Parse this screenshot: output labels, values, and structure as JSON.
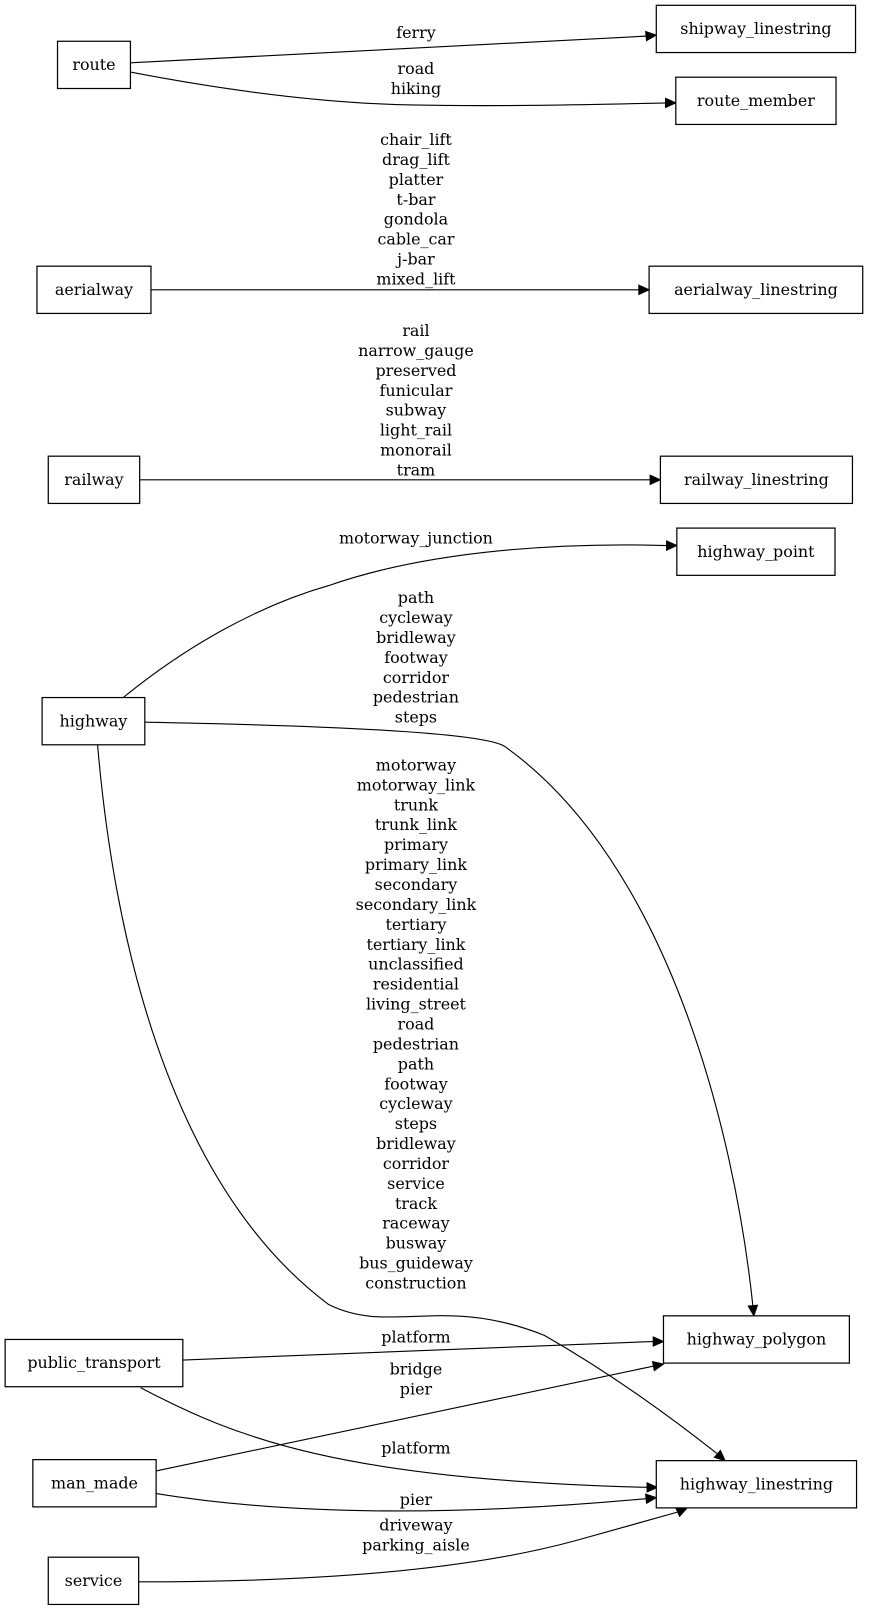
{
  "nodes": [
    {
      "id": "route",
      "label": "route"
    },
    {
      "id": "shipway_linestring",
      "label": "shipway_linestring"
    },
    {
      "id": "route_member",
      "label": "route_member"
    },
    {
      "id": "aerialway",
      "label": "aerialway"
    },
    {
      "id": "aerialway_linestring",
      "label": "aerialway_linestring"
    },
    {
      "id": "railway",
      "label": "railway"
    },
    {
      "id": "railway_linestring",
      "label": "railway_linestring"
    },
    {
      "id": "highway_point",
      "label": "highway_point"
    },
    {
      "id": "highway",
      "label": "highway"
    },
    {
      "id": "highway_polygon",
      "label": "highway_polygon"
    },
    {
      "id": "highway_linestring",
      "label": "highway_linestring"
    },
    {
      "id": "public_transport",
      "label": "public_transport"
    },
    {
      "id": "man_made",
      "label": "man_made"
    },
    {
      "id": "service",
      "label": "service"
    }
  ],
  "edges": [
    {
      "from": "route",
      "to": "shipway_linestring",
      "labels": [
        "ferry"
      ]
    },
    {
      "from": "route",
      "to": "route_member",
      "labels": [
        "road",
        "hiking"
      ]
    },
    {
      "from": "aerialway",
      "to": "aerialway_linestring",
      "labels": [
        "chair_lift",
        "drag_lift",
        "platter",
        "t-bar",
        "gondola",
        "cable_car",
        "j-bar",
        "mixed_lift"
      ]
    },
    {
      "from": "railway",
      "to": "railway_linestring",
      "labels": [
        "rail",
        "narrow_gauge",
        "preserved",
        "funicular",
        "subway",
        "light_rail",
        "monorail",
        "tram"
      ]
    },
    {
      "from": "highway",
      "to": "highway_point",
      "labels": [
        "motorway_junction"
      ]
    },
    {
      "from": "highway",
      "to": "highway_polygon",
      "labels": [
        "path",
        "cycleway",
        "bridleway",
        "footway",
        "corridor",
        "pedestrian",
        "steps"
      ]
    },
    {
      "from": "highway",
      "to": "highway_linestring",
      "labels": [
        "motorway",
        "motorway_link",
        "trunk",
        "trunk_link",
        "primary",
        "primary_link",
        "secondary",
        "secondary_link",
        "tertiary",
        "tertiary_link",
        "unclassified",
        "residential",
        "living_street",
        "road",
        "pedestrian",
        "path",
        "footway",
        "cycleway",
        "steps",
        "bridleway",
        "corridor",
        "service",
        "track",
        "raceway",
        "busway",
        "bus_guideway",
        "construction"
      ]
    },
    {
      "from": "public_transport",
      "to": "highway_polygon",
      "labels": [
        "platform"
      ]
    },
    {
      "from": "public_transport",
      "to": "highway_linestring",
      "labels": [
        "platform"
      ]
    },
    {
      "from": "man_made",
      "to": "highway_polygon",
      "labels": [
        "bridge",
        "pier"
      ]
    },
    {
      "from": "man_made",
      "to": "highway_linestring",
      "labels": [
        "pier"
      ]
    },
    {
      "from": "service",
      "to": "highway_linestring",
      "labels": [
        "driveway",
        "parking_aisle"
      ]
    }
  ]
}
